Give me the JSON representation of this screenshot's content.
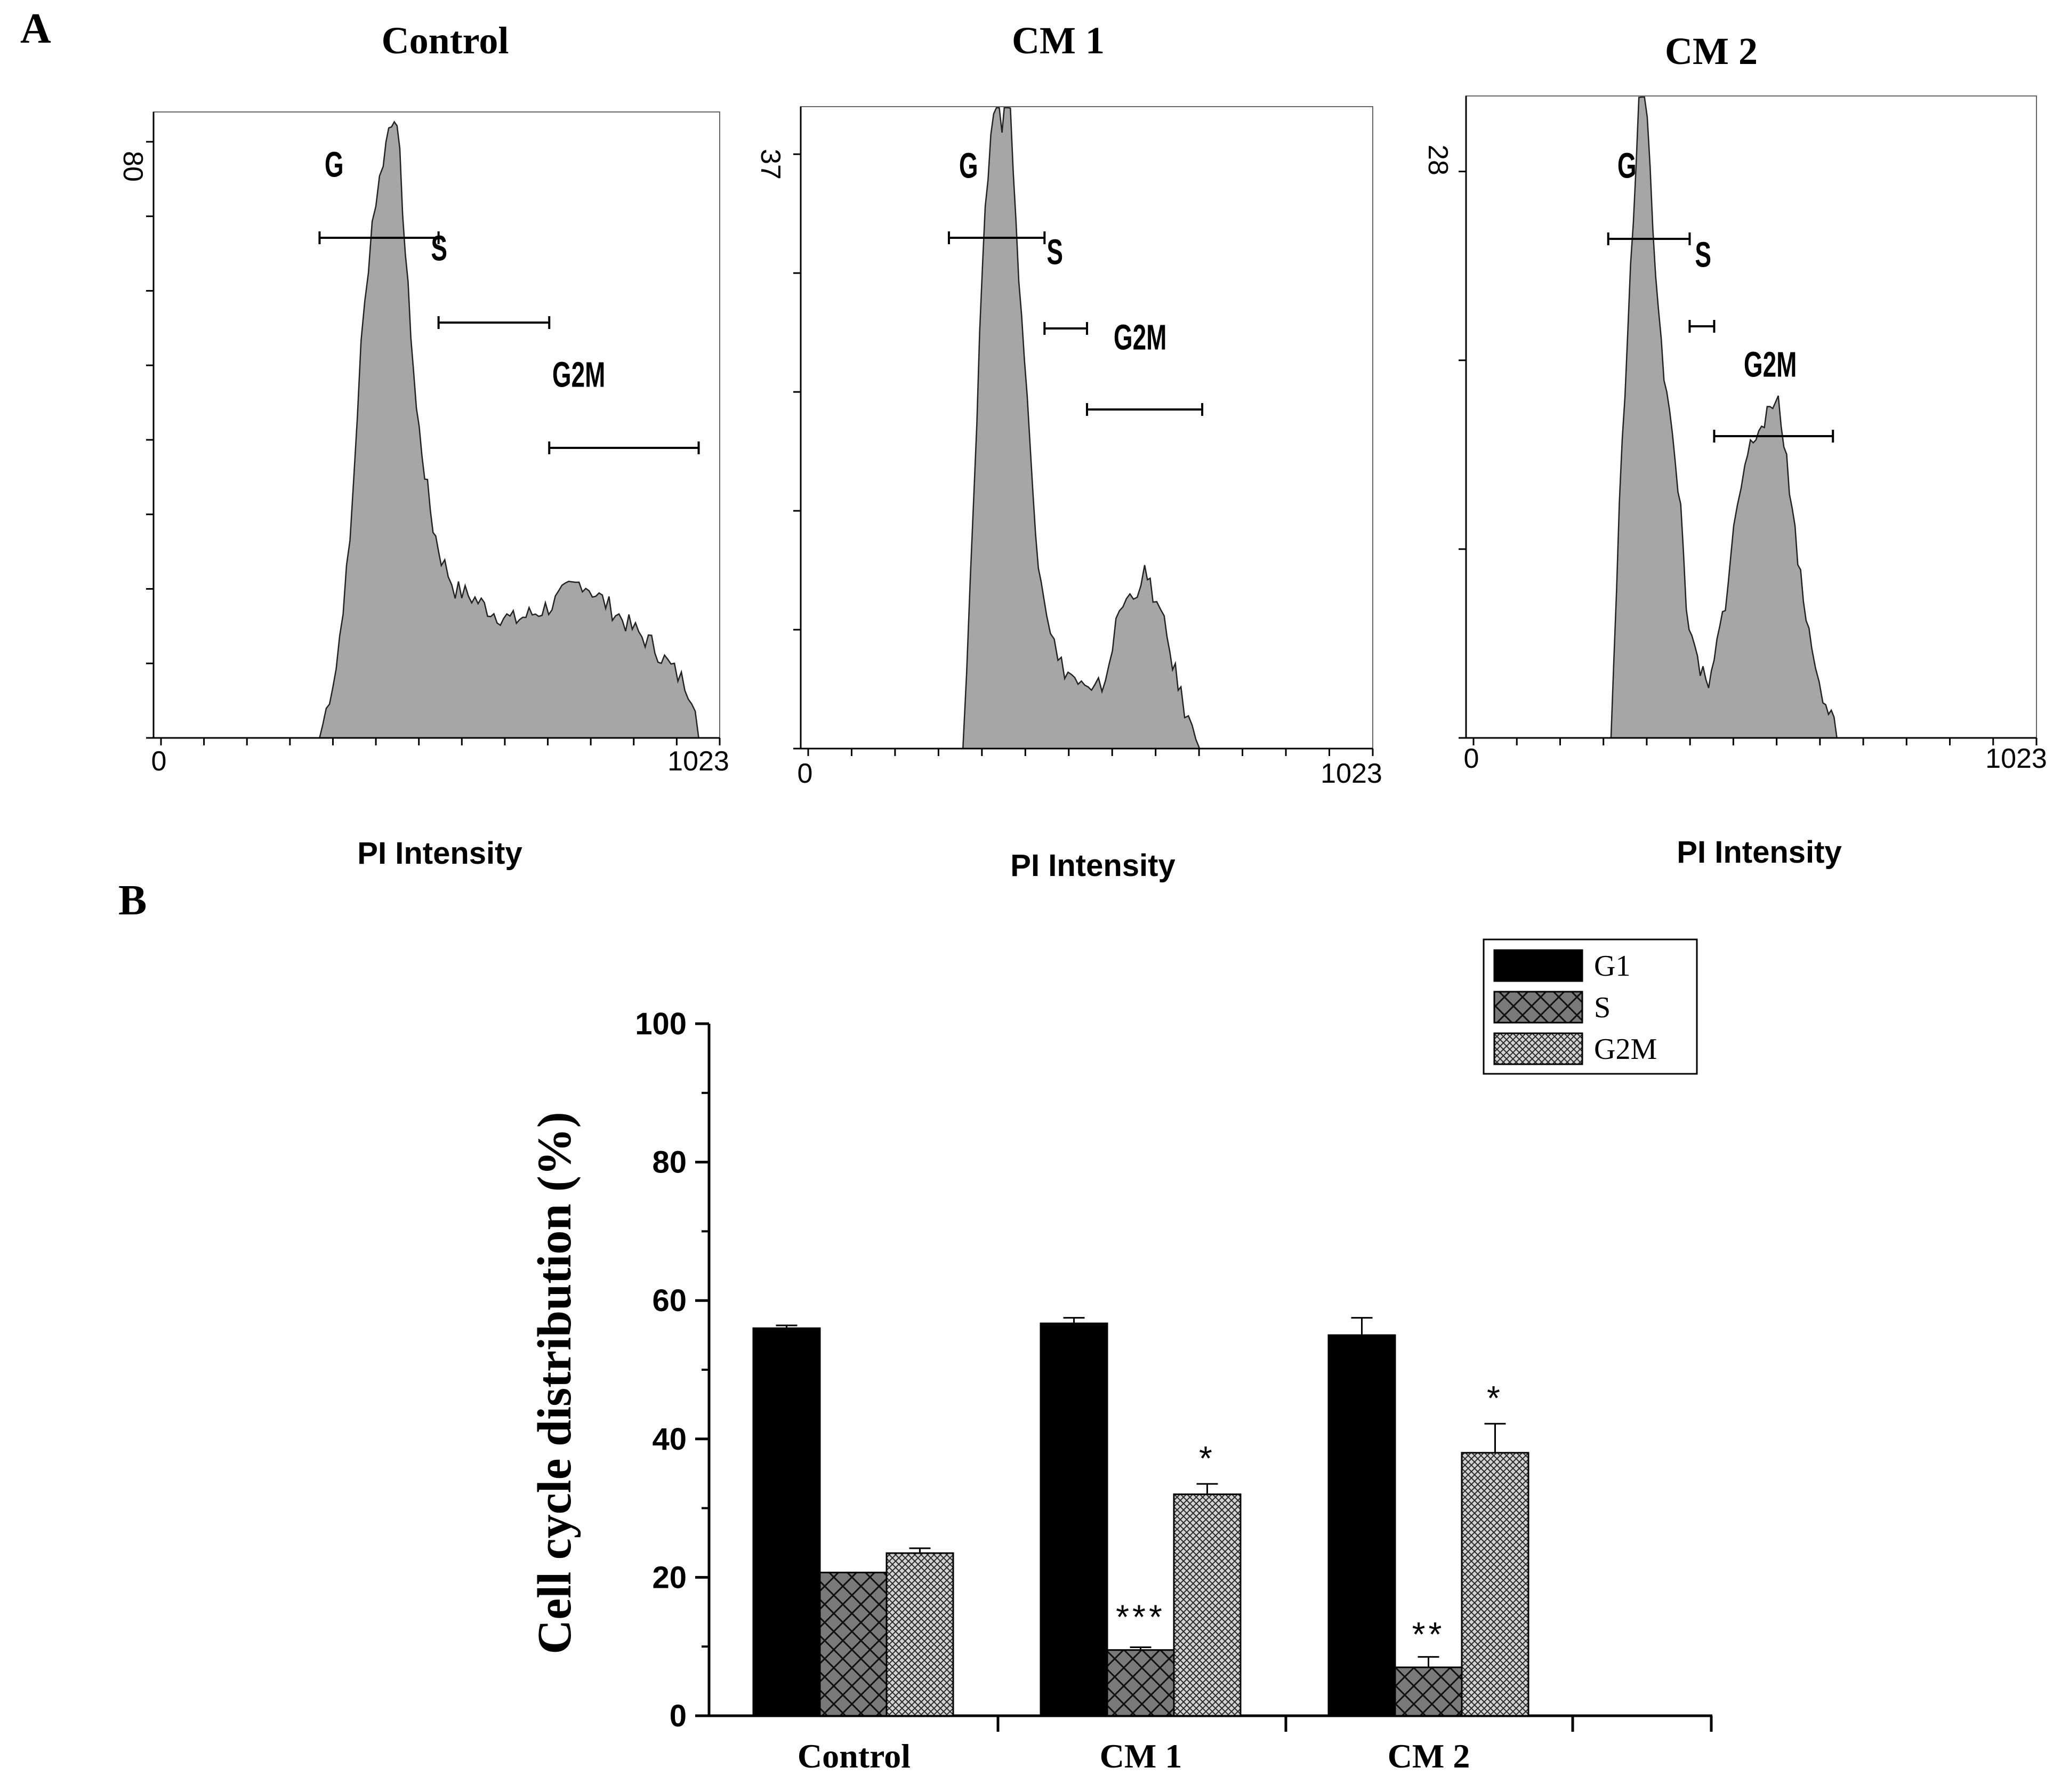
{
  "figure": {
    "panel_a_label": "A",
    "panel_b_label": "B"
  },
  "chart_data": [
    {
      "type": "area",
      "title": "Control",
      "xlabel": "PI Intensity",
      "x_tick_labels": [
        "0",
        "1023"
      ],
      "xlim": [
        0,
        1023
      ],
      "y_max_label": "80",
      "ylim": [
        0,
        80
      ],
      "gates": [
        {
          "name": "G",
          "range": [
            300,
            515
          ]
        },
        {
          "name": "S",
          "range": [
            515,
            715
          ]
        },
        {
          "name": "G2M",
          "range": [
            715,
            985
          ]
        }
      ],
      "x": [
        300,
        330,
        355,
        375,
        395,
        415,
        425,
        435,
        445,
        455,
        465,
        475,
        490,
        505,
        520,
        545,
        575,
        615,
        650,
        690,
        720,
        750,
        775,
        805,
        835,
        865,
        900,
        935,
        960,
        985
      ],
      "values": [
        0,
        9,
        25,
        50,
        66,
        74,
        78,
        80,
        74,
        62,
        52,
        42,
        34,
        27,
        23,
        19,
        18,
        16,
        15,
        16,
        17,
        19,
        20,
        18,
        16,
        14,
        12,
        9,
        7,
        4
      ]
    },
    {
      "type": "area",
      "title": "CM 1",
      "xlabel": "PI Intensity",
      "x_tick_labels": [
        "0",
        "1023"
      ],
      "xlim": [
        0,
        1023
      ],
      "y_max_label": "37",
      "ylim": [
        0,
        37
      ],
      "gates": [
        {
          "name": "G",
          "range": [
            265,
            436
          ]
        },
        {
          "name": "S",
          "range": [
            436,
            512
          ]
        },
        {
          "name": "G2M",
          "range": [
            512,
            718
          ]
        }
      ],
      "x": [
        290,
        310,
        325,
        340,
        350,
        360,
        368,
        375,
        385,
        395,
        405,
        415,
        425,
        440,
        460,
        490,
        520,
        545,
        570,
        595,
        615,
        630,
        650,
        665,
        680,
        700,
        720
      ],
      "values": [
        0,
        15,
        28,
        36,
        38,
        36,
        40,
        37,
        30,
        25,
        20,
        15,
        11,
        8,
        5,
        4,
        3,
        4,
        8,
        9,
        10,
        9,
        7,
        5,
        3,
        1,
        0
      ]
    },
    {
      "type": "area",
      "title": "CM 2",
      "xlabel": "PI Intensity",
      "x_tick_labels": [
        "0",
        "1023"
      ],
      "xlim": [
        0,
        1023
      ],
      "y_max_label": "28",
      "ylim": [
        0,
        28
      ],
      "gates": [
        {
          "name": "G",
          "range": [
            255,
            401
          ]
        },
        {
          "name": "S",
          "range": [
            401,
            445
          ]
        },
        {
          "name": "G2M",
          "range": [
            445,
            658
          ]
        }
      ],
      "x": [
        260,
        275,
        290,
        305,
        315,
        325,
        335,
        345,
        355,
        370,
        385,
        395,
        405,
        420,
        435,
        450,
        465,
        480,
        500,
        515,
        530,
        545,
        560,
        575,
        590,
        605,
        620,
        640,
        655,
        665
      ],
      "values": [
        0,
        10,
        18,
        25,
        30,
        27,
        22,
        19,
        16,
        13,
        10,
        6,
        4,
        3,
        2,
        4,
        6,
        9,
        12,
        13,
        14,
        14,
        15,
        12,
        9,
        6,
        4,
        2,
        1,
        0
      ]
    },
    {
      "type": "bar",
      "xlabel": "",
      "ylabel": "Cell cycle distribution (%)",
      "ylim": [
        0,
        100
      ],
      "y_ticks": [
        "0",
        "20",
        "40",
        "60",
        "80",
        "100"
      ],
      "categories": [
        "Control",
        "CM 1",
        "CM 2"
      ],
      "series": [
        {
          "name": "G1",
          "values": [
            56,
            56.7,
            55
          ],
          "errors": [
            0.4,
            0.8,
            2.5
          ],
          "significance": [
            "",
            "",
            ""
          ]
        },
        {
          "name": "S",
          "values": [
            20.7,
            9.5,
            7
          ],
          "errors": [
            0,
            0.4,
            1.5
          ],
          "significance": [
            "",
            "***",
            "**"
          ]
        },
        {
          "name": "G2M",
          "values": [
            23.5,
            32,
            38
          ],
          "errors": [
            0.7,
            1.5,
            4.2
          ],
          "significance": [
            "",
            "*",
            "*"
          ]
        }
      ],
      "legend": {
        "position": "top-right",
        "entries": [
          "G1",
          "S",
          "G2M"
        ]
      }
    }
  ]
}
